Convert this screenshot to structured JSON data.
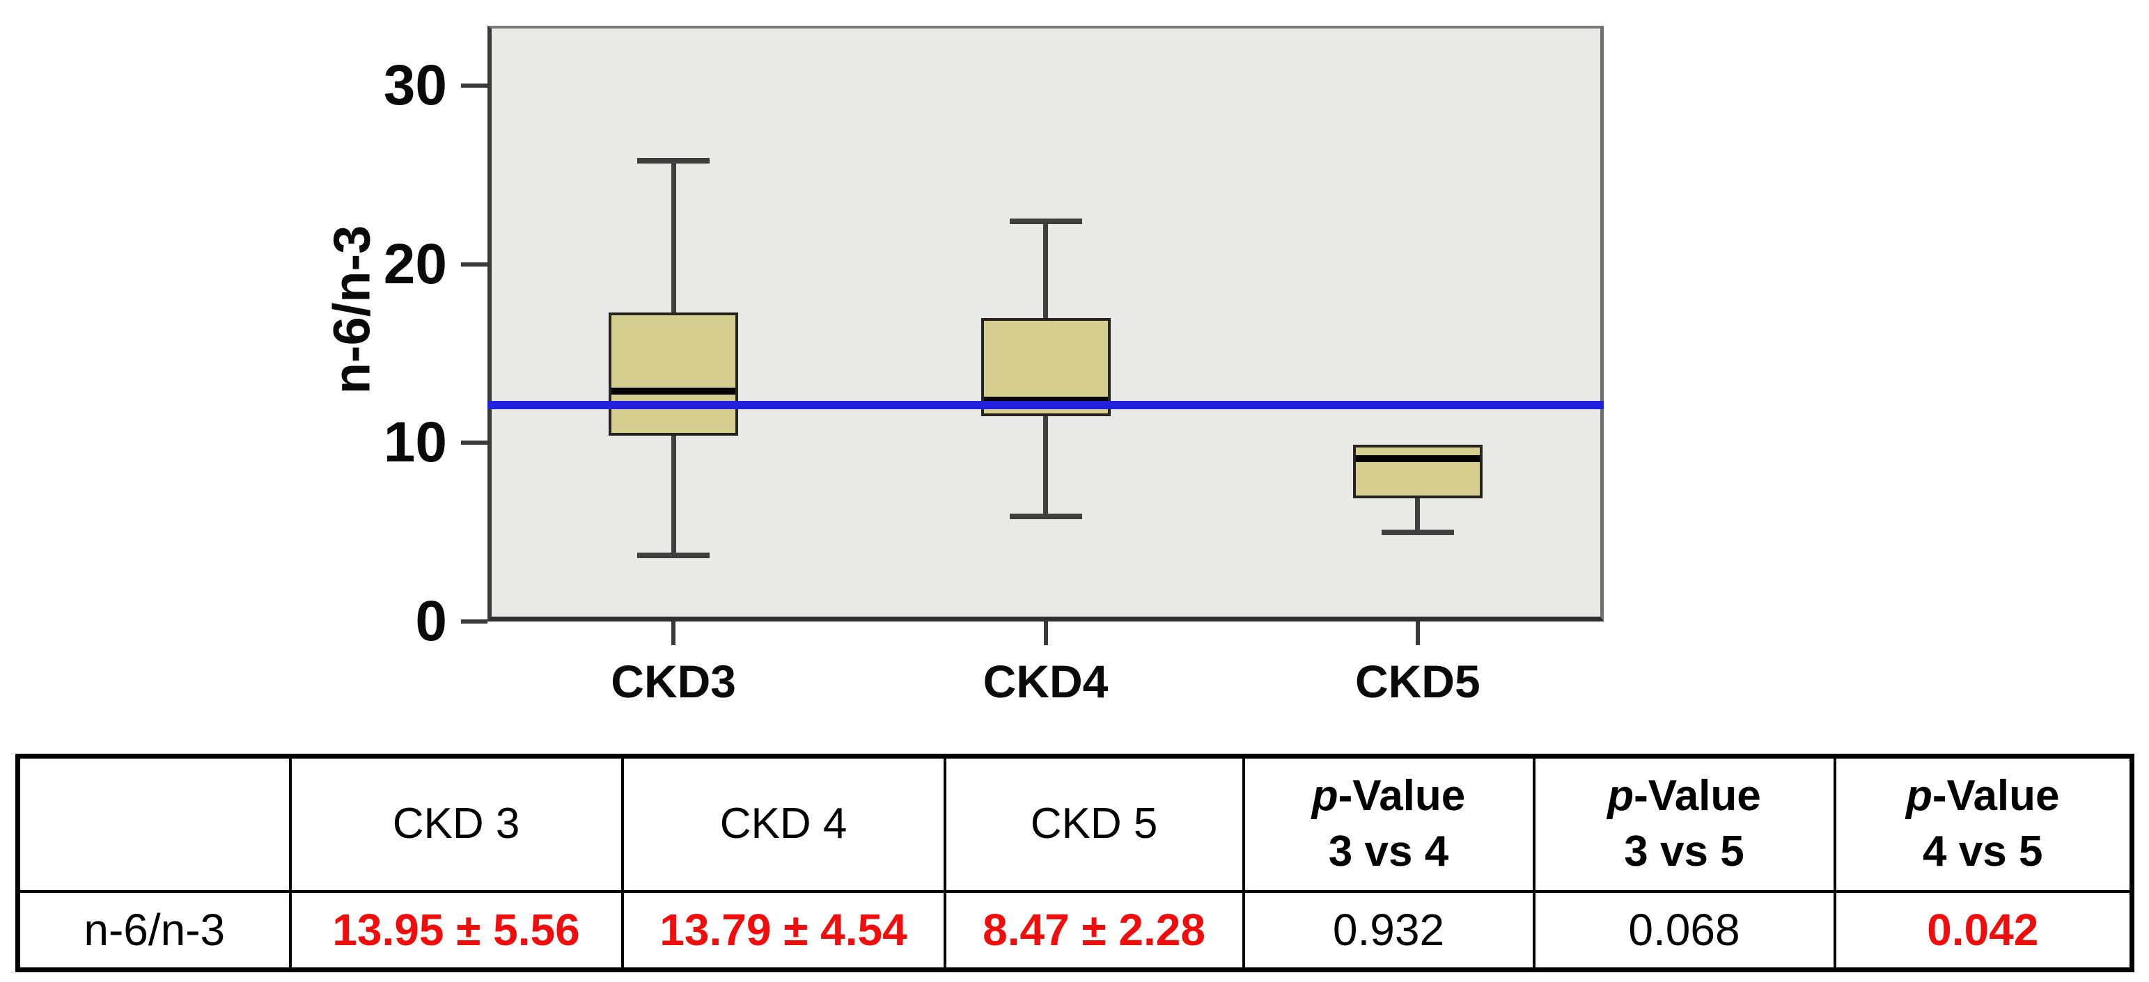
{
  "chart_data": {
    "type": "boxplot",
    "title": "",
    "xlabel": "",
    "ylabel": "n-6/n-3",
    "ylim": [
      0,
      33.35
    ],
    "yticks": [
      0,
      10,
      20,
      30
    ],
    "categories": [
      "CKD3",
      "CKD4",
      "CKD5"
    ],
    "reference_line": 12.1,
    "boxes": [
      {
        "category": "CKD3",
        "whisker_low": 3.7,
        "q1": 10.4,
        "median": 12.9,
        "q3": 17.3,
        "whisker_high": 25.8,
        "mean": 13.95,
        "sd": 5.56
      },
      {
        "category": "CKD4",
        "whisker_low": 5.9,
        "q1": 11.5,
        "median": 12.4,
        "q3": 17.0,
        "whisker_high": 22.4,
        "mean": 13.79,
        "sd": 4.54
      },
      {
        "category": "CKD5",
        "whisker_low": 5.0,
        "q1": 6.9,
        "median": 9.1,
        "q3": 9.9,
        "whisker_high": null,
        "mean": 8.47,
        "sd": 2.28
      }
    ],
    "legend": null,
    "grid": false,
    "plot_bg": "#e9e9e7",
    "box_fill": "#d7cf8f",
    "box_border": "#26241e",
    "median_color": "#050505",
    "whisker_color": "#3f3f3f",
    "reference_color": "#2121dd"
  },
  "table": {
    "p_italic": "p",
    "row_label": "n-6/n-3",
    "columns": {
      "corner": "",
      "ckd3": "CKD 3",
      "ckd4": "CKD 4",
      "ckd5": "CKD 5",
      "p34": {
        "rest": "-Value",
        "line2": "3 vs 4"
      },
      "p35": {
        "rest": "-Value",
        "line2": "3 vs 5"
      },
      "p45": {
        "rest": "-Value",
        "line2": "4 vs 5"
      }
    },
    "values": {
      "ckd3": "13.95 ± 5.56",
      "ckd4": "13.79 ± 4.54",
      "ckd5": "8.47 ± 2.28",
      "p34": "0.932",
      "p35": "0.068",
      "p45": "0.042"
    },
    "highlighted": [
      "ckd3",
      "ckd4",
      "ckd5",
      "p45"
    ],
    "highlight_color": "#f20d0d",
    "text_color": "#000000",
    "border_color": "#000000"
  }
}
